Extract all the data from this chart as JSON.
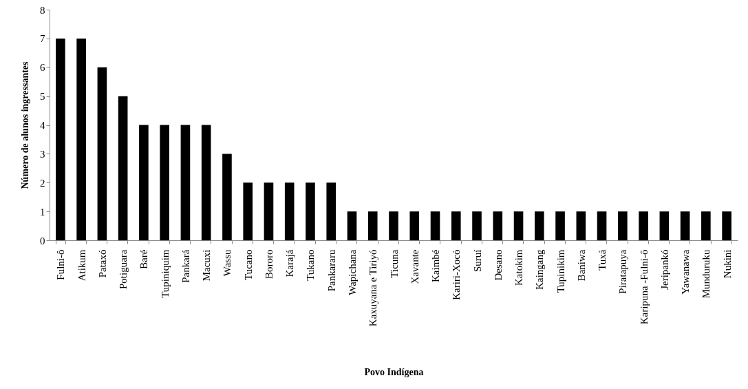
{
  "chart_data": {
    "type": "bar",
    "xlabel": "Povo Indígena",
    "ylabel": "Número de alunos ingressantes",
    "categories": [
      "Fulni-ô",
      "Atikum",
      "Pataxó",
      "Potiguara",
      "Baré",
      "Tupiniquim",
      "Pankará",
      "Macuxi",
      "Wassu",
      "Tucano",
      "Bororo",
      "Karajá",
      "Tukano",
      "Pankararu",
      "Wapichana",
      "Kaxuyana e Tiriyó",
      "Ticuna",
      "Xavante",
      "Kaimbé",
      "Kariri-Xocó",
      "Suruí",
      "Desano",
      "Katokim",
      "Kaingang",
      "Tupinikim",
      "Baniwa",
      "Tuxá",
      "Piratapuya",
      "Karipuna -Fulni-ô",
      "Jeripankó",
      "Yawanawa",
      "Munduruku",
      "Nukini"
    ],
    "values": [
      7,
      7,
      6,
      5,
      4,
      4,
      4,
      4,
      3,
      2,
      2,
      2,
      2,
      2,
      1,
      1,
      1,
      1,
      1,
      1,
      1,
      1,
      1,
      1,
      1,
      1,
      1,
      1,
      1,
      1,
      1,
      1,
      1
    ],
    "color": "#000000",
    "ylim": [
      0,
      8
    ],
    "yticks": [
      0,
      1,
      2,
      3,
      4,
      5,
      6,
      7,
      8
    ],
    "grid": false
  }
}
